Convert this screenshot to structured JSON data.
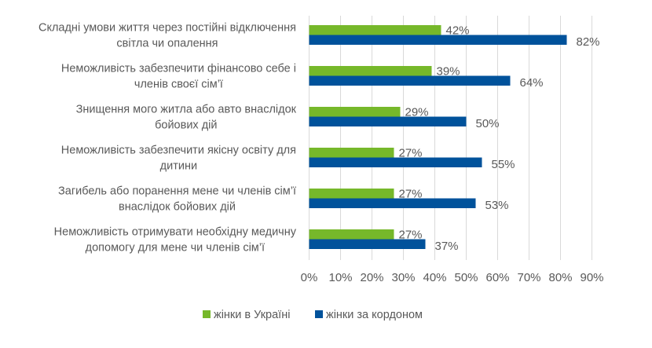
{
  "chart_data": {
    "type": "bar",
    "orientation": "horizontal",
    "categories": [
      [
        "Складні умови життя через постійні відключення",
        "світла чи опалення"
      ],
      [
        "Неможливість забезпечити фінансово себе і",
        "членів своєї сім’ї"
      ],
      [
        "Знищення мого житла або авто внаслідок",
        "бойових дій"
      ],
      [
        "Неможливість забезпечити якісну освіту для",
        "дитини"
      ],
      [
        "Загибель або поранення мене чи членів сім’ї",
        "внаслідок бойових дій"
      ],
      [
        "Неможливість отримувати необхідну медичну",
        "допомогу для мене чи членів сім’ї"
      ]
    ],
    "series": [
      {
        "name": "жінки в Україні",
        "color": "#76b82a",
        "values": [
          42,
          39,
          29,
          27,
          27,
          27
        ],
        "labels": [
          "42%",
          "39%",
          "29%",
          "27%",
          "27%",
          "27%"
        ]
      },
      {
        "name": "жінки за кордоном",
        "color": "#00529b",
        "values": [
          82,
          64,
          50,
          55,
          53,
          37
        ],
        "labels": [
          "82%",
          "64%",
          "50%",
          "55%",
          "53%",
          "37%"
        ]
      }
    ],
    "xlim": [
      0,
      90
    ],
    "xticks": [
      "0%",
      "10%",
      "20%",
      "30%",
      "40%",
      "50%",
      "60%",
      "70%",
      "80%",
      "90%"
    ],
    "grid": true,
    "legend": "bottom"
  }
}
